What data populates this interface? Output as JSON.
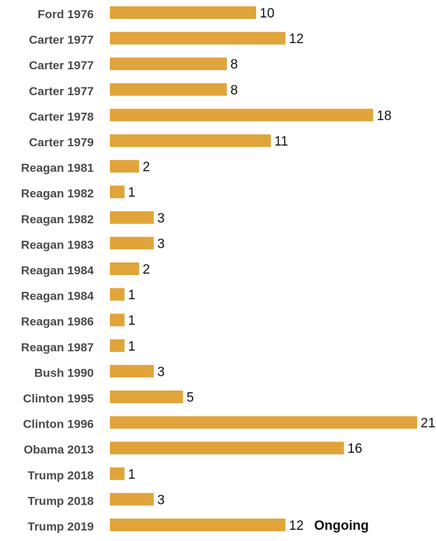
{
  "chart_data": {
    "type": "bar",
    "orientation": "horizontal",
    "title": "",
    "xlabel": "",
    "ylabel": "",
    "categories": [
      "Ford 1976",
      "Carter 1977",
      "Carter 1977",
      "Carter 1977",
      "Carter 1978",
      "Carter 1979",
      "Reagan 1981",
      "Reagan 1982",
      "Reagan 1982",
      "Reagan 1983",
      "Reagan 1984",
      "Reagan 1984",
      "Reagan 1986",
      "Reagan 1987",
      "Bush 1990",
      "Clinton 1995",
      "Clinton 1996",
      "Obama 2013",
      "Trump 2018",
      "Trump 2018",
      "Trump 2019"
    ],
    "values": [
      10,
      12,
      8,
      8,
      18,
      11,
      2,
      1,
      3,
      3,
      2,
      1,
      1,
      1,
      3,
      5,
      21,
      16,
      1,
      3,
      12
    ],
    "xlim": [
      0,
      21
    ],
    "grid": false,
    "bar_color": "#E0A43A",
    "annotations": [
      {
        "category_index": 20,
        "text": "Ongoing"
      }
    ]
  }
}
